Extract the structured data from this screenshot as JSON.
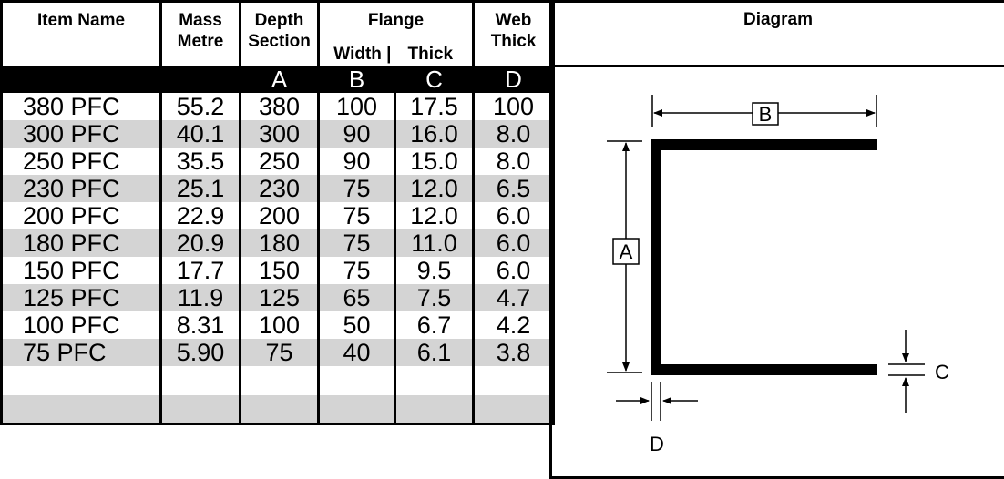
{
  "headers": {
    "item_name": "Item Name",
    "mass_line1": "Mass",
    "mass_line2": "Metre",
    "depth_line1": "Depth",
    "depth_line2": "Section",
    "flange": "Flange",
    "flange_width": "Width",
    "flange_thick": "Thick",
    "web_line1": "Web",
    "web_line2": "Thick",
    "diagram": "Diagram"
  },
  "letters": [
    "A",
    "B",
    "C",
    "D"
  ],
  "rows": [
    {
      "name": "380 PFC",
      "mass": "55.2",
      "depth": "380",
      "width": "100",
      "thick": "17.5",
      "web": "100"
    },
    {
      "name": "300 PFC",
      "mass": "40.1",
      "depth": "300",
      "width": "90",
      "thick": "16.0",
      "web": "8.0"
    },
    {
      "name": "250 PFC",
      "mass": "35.5",
      "depth": "250",
      "width": "90",
      "thick": "15.0",
      "web": "8.0"
    },
    {
      "name": "230 PFC",
      "mass": "25.1",
      "depth": "230",
      "width": "75",
      "thick": "12.0",
      "web": "6.5"
    },
    {
      "name": "200 PFC",
      "mass": "22.9",
      "depth": "200",
      "width": "75",
      "thick": "12.0",
      "web": "6.0"
    },
    {
      "name": "180 PFC",
      "mass": "20.9",
      "depth": "180",
      "width": "75",
      "thick": "11.0",
      "web": "6.0"
    },
    {
      "name": "150 PFC",
      "mass": "17.7",
      "depth": "150",
      "width": "75",
      "thick": "9.5",
      "web": "6.0"
    },
    {
      "name": "125 PFC",
      "mass": "11.9",
      "depth": "125",
      "width": "65",
      "thick": "7.5",
      "web": "4.7"
    },
    {
      "name": "100 PFC",
      "mass": "8.31",
      "depth": "100",
      "width": "50",
      "thick": "6.7",
      "web": "4.2"
    },
    {
      "name": "75 PFC",
      "mass": "5.90",
      "depth": "75",
      "width": "40",
      "thick": "6.1",
      "web": "3.8"
    },
    {
      "name": "",
      "mass": "",
      "depth": "",
      "width": "",
      "thick": "",
      "web": ""
    },
    {
      "name": "",
      "mass": "",
      "depth": "",
      "width": "",
      "thick": "",
      "web": ""
    }
  ],
  "diagram_labels": {
    "a": "A",
    "b": "B",
    "c": "C",
    "d": "D"
  }
}
